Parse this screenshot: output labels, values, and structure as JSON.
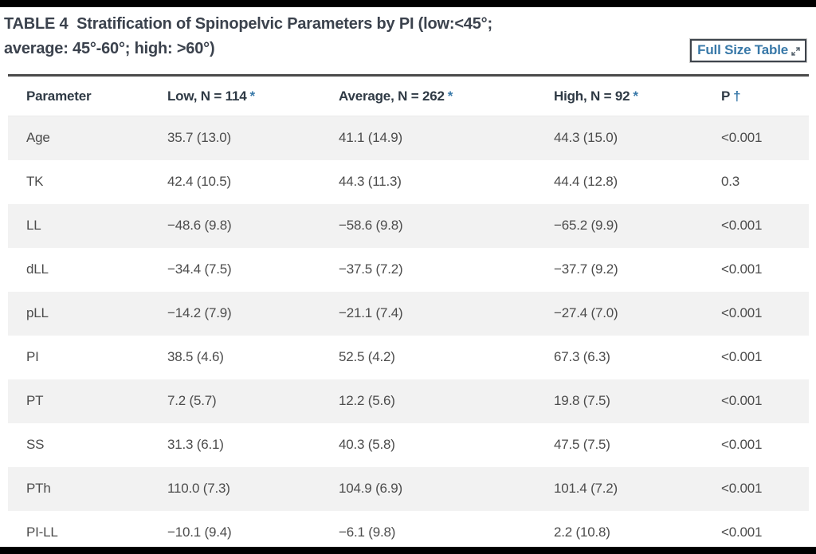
{
  "page": {
    "title_line1": "TABLE 4  Stratification of Spinopelvic Parameters by PI (low:<45°;",
    "title_line2": "average: 45°-60°; high: >60°)",
    "full_size_button_label": "Full Size Table"
  },
  "colors": {
    "accent_blue": "#3878a8",
    "heading_text": "#2f3a45",
    "title_text": "#3b424d",
    "body_text": "#4c4c4c",
    "row_stripe": "#f2f2f2",
    "table_top_border": "#4a4a4a",
    "button_border": "#3e444c",
    "letterbox": "#000000"
  },
  "icons": {
    "expand": "expand-diagonal-arrows-icon"
  },
  "table": {
    "columns": [
      {
        "label": "Parameter",
        "marker": ""
      },
      {
        "label": "Low, N = 114",
        "marker": "*"
      },
      {
        "label": "Average, N = 262",
        "marker": "*"
      },
      {
        "label": "High, N = 92",
        "marker": "*"
      },
      {
        "label": "P",
        "marker": "†"
      }
    ],
    "rows": [
      {
        "cells": [
          "Age",
          "35.7 (13.0)",
          "41.1 (14.9)",
          "44.3 (15.0)",
          "<0.001"
        ]
      },
      {
        "cells": [
          "TK",
          "42.4 (10.5)",
          "44.3 (11.3)",
          "44.4 (12.8)",
          "0.3"
        ]
      },
      {
        "cells": [
          "LL",
          "−48.6 (9.8)",
          "−58.6 (9.8)",
          "−65.2 (9.9)",
          "<0.001"
        ]
      },
      {
        "cells": [
          "dLL",
          "−34.4 (7.5)",
          "−37.5 (7.2)",
          "−37.7 (9.2)",
          "<0.001"
        ]
      },
      {
        "cells": [
          "pLL",
          "−14.2 (7.9)",
          "−21.1 (7.4)",
          "−27.4 (7.0)",
          "<0.001"
        ]
      },
      {
        "cells": [
          "PI",
          "38.5 (4.6)",
          "52.5 (4.2)",
          "67.3 (6.3)",
          "<0.001"
        ]
      },
      {
        "cells": [
          "PT",
          "7.2 (5.7)",
          "12.2 (5.6)",
          "19.8 (7.5)",
          "<0.001"
        ]
      },
      {
        "cells": [
          "SS",
          "31.3 (6.1)",
          "40.3 (5.8)",
          "47.5 (7.5)",
          "<0.001"
        ]
      },
      {
        "cells": [
          "PTh",
          "110.0 (7.3)",
          "104.9 (6.9)",
          "101.4 (7.2)",
          "<0.001"
        ]
      },
      {
        "cells": [
          "PI-LL",
          "−10.1 (9.4)",
          "−6.1 (9.8)",
          "2.2 (10.8)",
          "<0.001"
        ]
      }
    ]
  },
  "chart_data": {
    "type": "table",
    "title": "TABLE 4 Stratification of Spinopelvic Parameters by PI (low:<45°; average: 45°-60°; high: >60°)",
    "columns": [
      "Parameter",
      "Low, N = 114 *",
      "Average, N = 262 *",
      "High, N = 92 *",
      "P †"
    ],
    "rows": [
      [
        "Age",
        "35.7 (13.0)",
        "41.1 (14.9)",
        "44.3 (15.0)",
        "<0.001"
      ],
      [
        "TK",
        "42.4 (10.5)",
        "44.3 (11.3)",
        "44.4 (12.8)",
        "0.3"
      ],
      [
        "LL",
        "−48.6 (9.8)",
        "−58.6 (9.8)",
        "−65.2 (9.9)",
        "<0.001"
      ],
      [
        "dLL",
        "−34.4 (7.5)",
        "−37.5 (7.2)",
        "−37.7 (9.2)",
        "<0.001"
      ],
      [
        "pLL",
        "−14.2 (7.9)",
        "−21.1 (7.4)",
        "−27.4 (7.0)",
        "<0.001"
      ],
      [
        "PI",
        "38.5 (4.6)",
        "52.5 (4.2)",
        "67.3 (6.3)",
        "<0.001"
      ],
      [
        "PT",
        "7.2 (5.7)",
        "12.2 (5.6)",
        "19.8 (7.5)",
        "<0.001"
      ],
      [
        "SS",
        "31.3 (6.1)",
        "40.3 (5.8)",
        "47.5 (7.5)",
        "<0.001"
      ],
      [
        "PTh",
        "110.0 (7.3)",
        "104.9 (6.9)",
        "101.4 (7.2)",
        "<0.001"
      ],
      [
        "PI-LL",
        "−10.1 (9.4)",
        "−6.1 (9.8)",
        "2.2 (10.8)",
        "<0.001"
      ]
    ]
  }
}
